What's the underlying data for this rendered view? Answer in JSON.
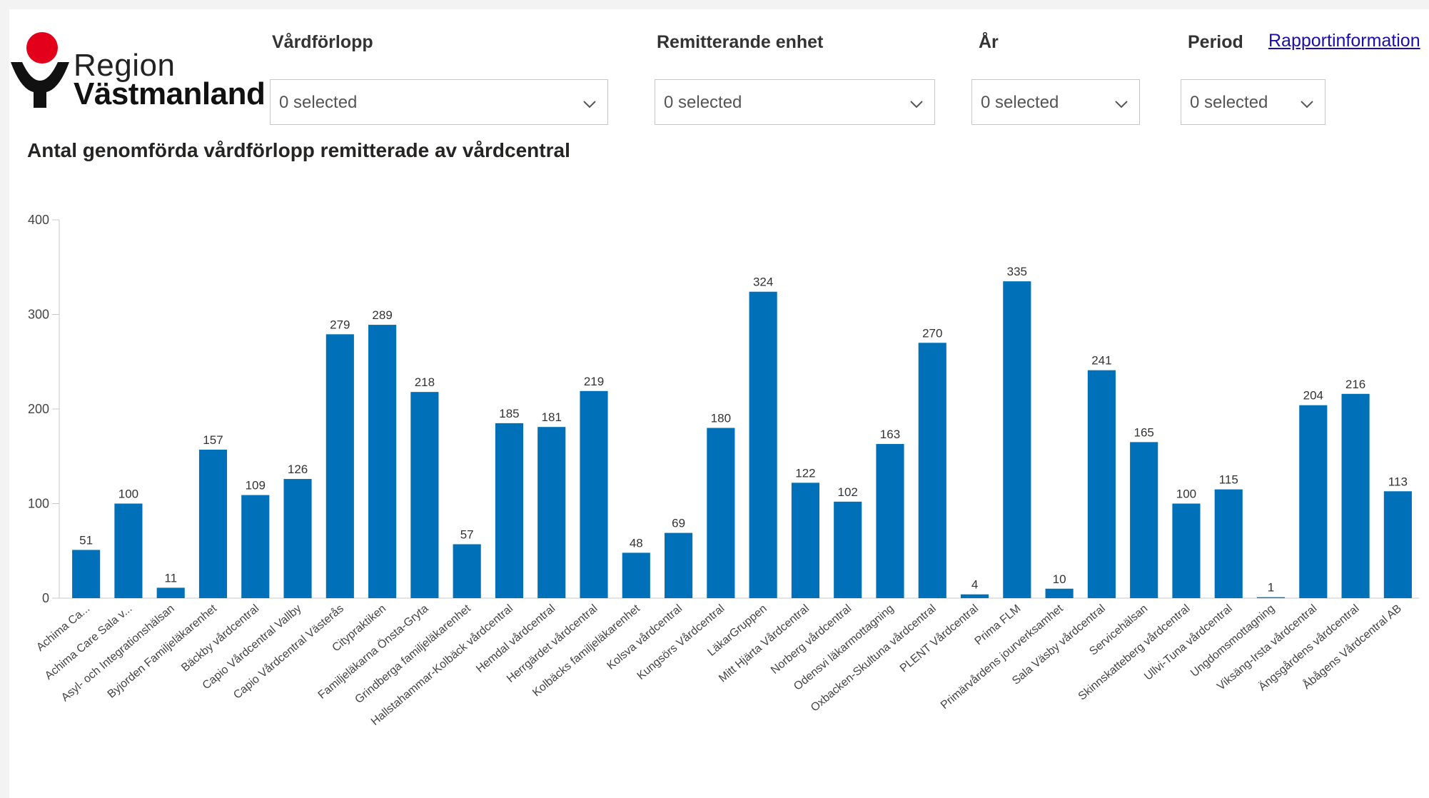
{
  "header": {
    "logo": {
      "line1": "Region",
      "line2": "Västmanland",
      "icon": "region-vastmanland-logo",
      "colors": {
        "dot": "#e2001a",
        "mark": "#111111"
      }
    },
    "filters": [
      {
        "label": "Vårdförlopp",
        "value": "0 selected"
      },
      {
        "label": "Remitterande enhet",
        "value": "0 selected"
      },
      {
        "label": "År",
        "value": "0 selected"
      },
      {
        "label": "Period",
        "value": "0 selected"
      }
    ],
    "report_link": "Rapportinformation"
  },
  "chart_data": {
    "type": "bar",
    "title": "Antal genomförda vårdförlopp remitterade av vårdcentral",
    "xlabel": "",
    "ylabel": "",
    "ylim": [
      0,
      400
    ],
    "yticks": [
      0,
      100,
      200,
      300,
      400
    ],
    "grid": false,
    "bar_color": "#0070b8",
    "categories": [
      "Achima Ca...",
      "Achima Care Sala v...",
      "Asyl- och Integrationshälsan",
      "Byjorden Familjeläkarenhet",
      "Bäckby vårdcentral",
      "Capio Vårdcentral Vallby",
      "Capio Vårdcentral Västerås",
      "Citypraktiken",
      "Familjeläkarna Önsta-Gryta",
      "Grindberga familjeläkarenhet",
      "Hallstahammar-Kolbäck vårdcentral",
      "Hemdal vårdcentral",
      "Herrgärdet vårdcentral",
      "Kolbäcks familjeläkarenhet",
      "Kolsva vårdcentral",
      "Kungsörs Vårdcentral",
      "LäkarGruppen",
      "Mitt Hjärta Vårdcentral",
      "Norberg vårdcentral",
      "Odensvi läkarmottagning",
      "Oxbacken-Skultuna vårdcentral",
      "PLENT Vårdcentral",
      "Prima FLM",
      "Primärvårdens jourverksamhet",
      "Sala Väsby vårdcentral",
      "Servicehälsan",
      "Skinnskatteberg vårdcentral",
      "Ullvi-Tuna vårdcentral",
      "Ungdomsmottagning",
      "Viksäng-Irsta vårdcentral",
      "Ängsgårdens vårdcentral",
      "Åbågens Vårdcentral AB"
    ],
    "values": [
      51,
      100,
      11,
      157,
      109,
      126,
      279,
      289,
      218,
      57,
      185,
      181,
      219,
      48,
      69,
      180,
      324,
      122,
      102,
      163,
      270,
      4,
      335,
      10,
      241,
      165,
      100,
      115,
      1,
      204,
      216,
      113
    ]
  }
}
